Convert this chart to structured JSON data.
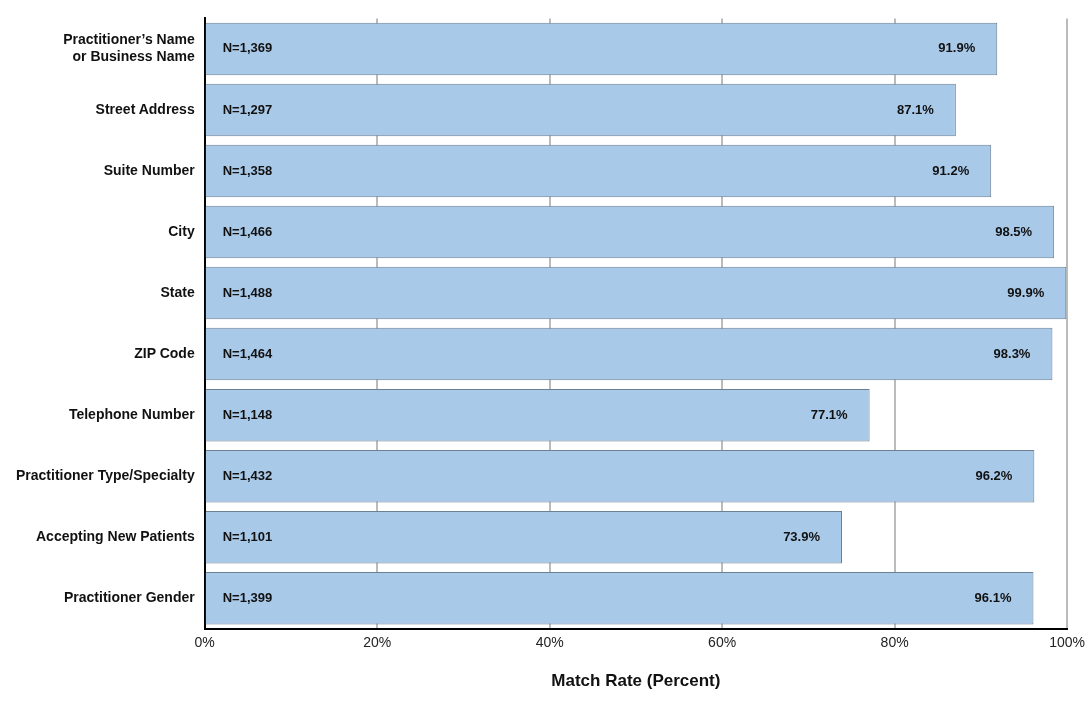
{
  "chart_data": {
    "type": "bar",
    "orientation": "horizontal",
    "xlabel": "Match Rate (Percent)",
    "categories": [
      "Practitioner’s Name or Business Name",
      "Street Address",
      "Suite Number",
      "City",
      "State",
      "ZIP Code",
      "Telephone Number",
      "Practitioner Type/Specialty",
      "Accepting New Patients",
      "Practitioner Gender"
    ],
    "values": [
      91.9,
      87.1,
      91.2,
      98.5,
      99.9,
      98.3,
      77.1,
      96.2,
      73.9,
      96.1
    ],
    "value_labels": [
      "91.9%",
      "87.1%",
      "91.2%",
      "98.5%",
      "99.9%",
      "98.3%",
      "77.1%",
      "96.2%",
      "73.9%",
      "96.1%"
    ],
    "color": "#a9c9e9",
    "xlim": [
      0,
      100
    ],
    "xticks": [
      {
        "value": 0,
        "label": "0%"
      },
      {
        "value": 20,
        "label": "20%"
      },
      {
        "value": 40,
        "label": "40%"
      },
      {
        "value": 60,
        "label": "60%"
      },
      {
        "value": 80,
        "label": "80%"
      },
      {
        "value": 100,
        "label": "100%"
      }
    ],
    "grid": "x",
    "legend": false,
    "annotations": [
      "N=1,369",
      "N=1,297",
      "N=1,358",
      "N=1,466",
      "N=1,488",
      "N=1,464",
      "N=1,148",
      "N=1,432",
      "N=1,101",
      "N=1,399"
    ]
  }
}
